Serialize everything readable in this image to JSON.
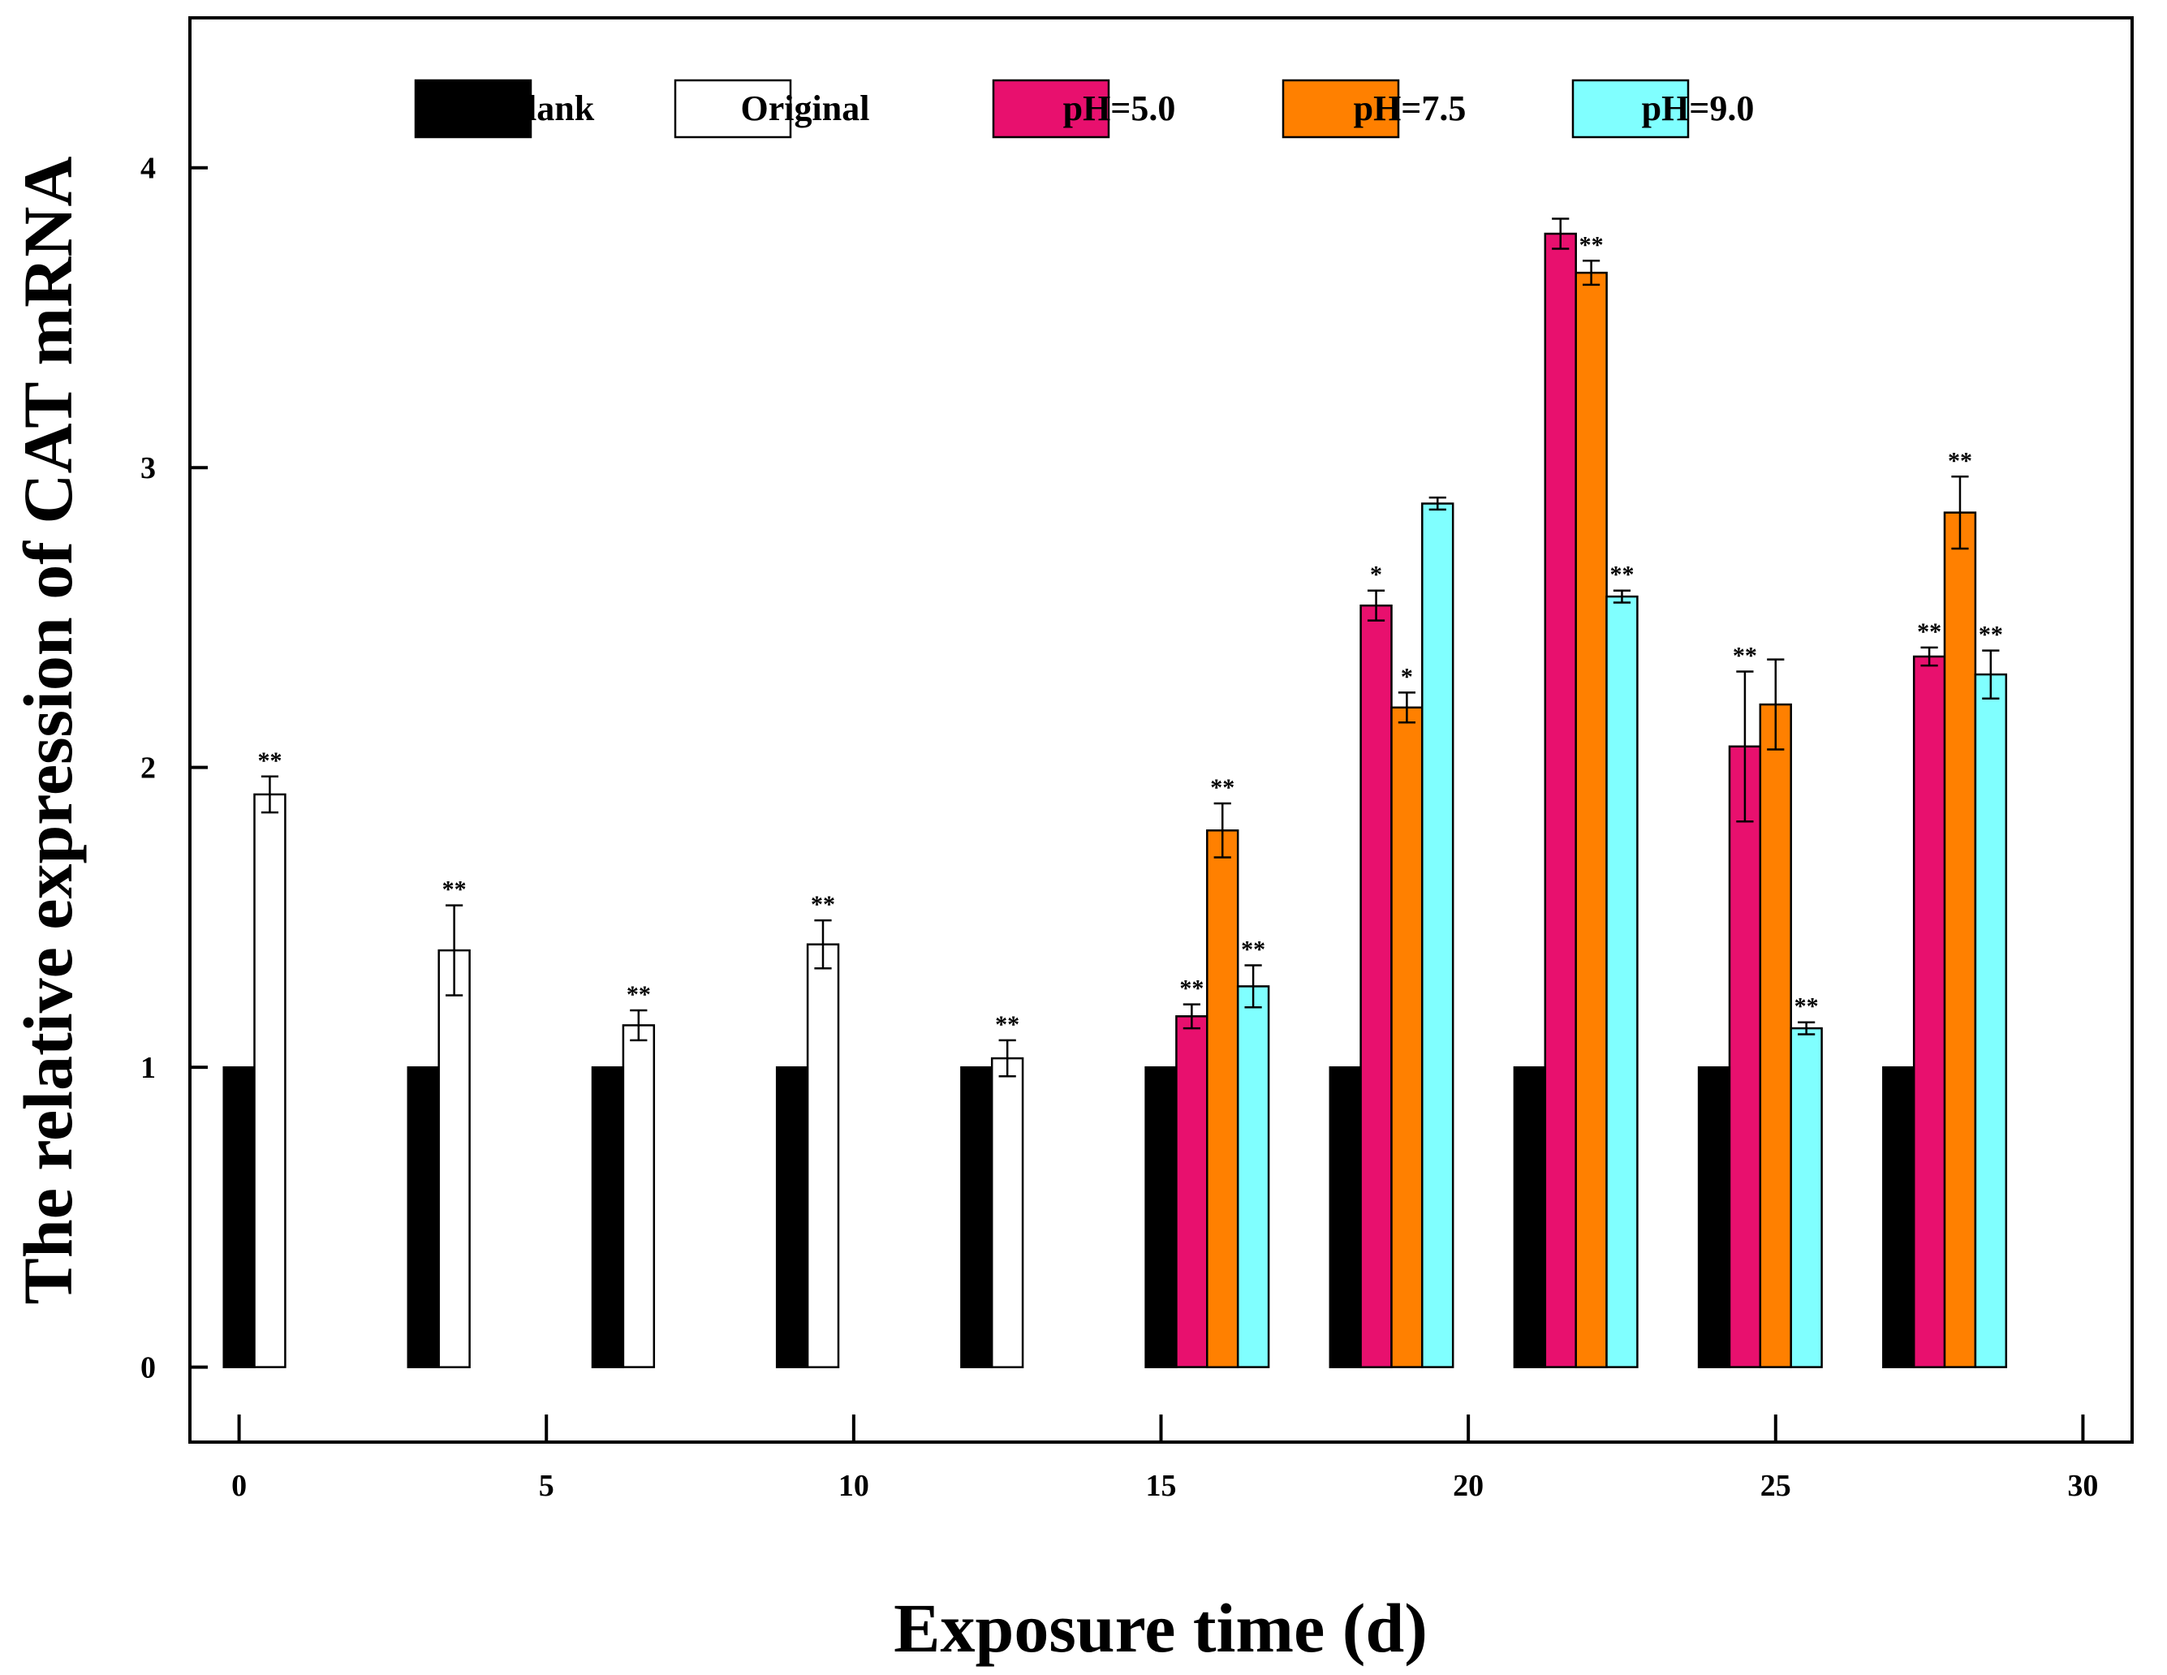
{
  "chart_data": {
    "type": "bar",
    "title": "",
    "xlabel": "Exposure time (d)",
    "ylabel": "The relative expression of CAT mRNA",
    "xlim": [
      -0.8,
      30.8
    ],
    "ylim": [
      -0.25,
      4.5
    ],
    "xticks": [
      0,
      5,
      10,
      15,
      20,
      25,
      30
    ],
    "xtick_labels": [
      "0",
      "5",
      "10",
      "15",
      "20",
      "25",
      "30"
    ],
    "yticks": [
      0,
      1,
      2,
      3,
      4
    ],
    "ytick_labels": [
      "0",
      "1",
      "2",
      "3",
      "4"
    ],
    "grid": false,
    "legend_position": "top",
    "categories": [
      "0",
      "3",
      "6",
      "9",
      "12",
      "15",
      "18",
      "21",
      "24",
      "27"
    ],
    "group_x": [
      0,
      3,
      6,
      9,
      12,
      15,
      18,
      21,
      24,
      27
    ],
    "bar_width": 0.5,
    "series": [
      {
        "name": "Blank",
        "color": "#000000",
        "values": [
          1,
          1,
          1,
          1,
          1,
          1,
          1,
          1,
          1,
          1
        ],
        "errors": [
          0,
          0,
          0,
          0,
          0,
          0,
          0,
          0,
          0,
          0
        ],
        "significance": [
          "",
          "",
          "",
          "",
          "",
          "",
          "",
          "",
          "",
          ""
        ]
      },
      {
        "name": "Original",
        "color": "#ffffff",
        "values": [
          1.91,
          1.39,
          1.14,
          1.41,
          1.03,
          null,
          null,
          null,
          null,
          null
        ],
        "errors": [
          0.06,
          0.15,
          0.05,
          0.08,
          0.06,
          null,
          null,
          null,
          null,
          null
        ],
        "significance": [
          "**",
          "**",
          "**",
          "**",
          "**",
          "",
          "",
          "",
          "",
          ""
        ]
      },
      {
        "name": "pH=5.0",
        "color": "#e8106e",
        "values": [
          null,
          null,
          null,
          null,
          null,
          1.17,
          2.54,
          3.78,
          2.07,
          2.37
        ],
        "errors": [
          null,
          null,
          null,
          null,
          null,
          0.04,
          0.05,
          0.05,
          0.25,
          0.03
        ],
        "significance": [
          "",
          "",
          "",
          "",
          "",
          "**",
          "*",
          "",
          "**",
          "**"
        ]
      },
      {
        "name": "pH=7.5",
        "color": "#ff8000",
        "values": [
          null,
          null,
          null,
          null,
          null,
          1.79,
          2.2,
          3.65,
          2.21,
          2.85
        ],
        "errors": [
          null,
          null,
          null,
          null,
          null,
          0.09,
          0.05,
          0.04,
          0.15,
          0.12
        ],
        "significance": [
          "",
          "",
          "",
          "",
          "",
          "**",
          "*",
          "**",
          "",
          "**"
        ]
      },
      {
        "name": "pH=9.0",
        "color": "#80ffff",
        "values": [
          null,
          null,
          null,
          null,
          null,
          1.27,
          2.88,
          2.57,
          1.13,
          2.31
        ],
        "errors": [
          null,
          null,
          null,
          null,
          null,
          0.07,
          0.02,
          0.02,
          0.02,
          0.08
        ],
        "significance": [
          "",
          "",
          "",
          "",
          "",
          "**",
          "",
          "**",
          "**",
          "**"
        ]
      }
    ]
  }
}
